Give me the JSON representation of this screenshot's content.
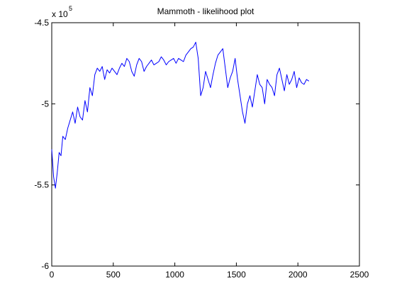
{
  "chart_data": {
    "type": "line",
    "title": "Mammoth - likelihood plot",
    "xlabel": "",
    "ylabel": "",
    "xlim": [
      0,
      2500
    ],
    "ylim": [
      -6,
      -4.5
    ],
    "x_ticks": [
      0,
      500,
      1000,
      1500,
      2000,
      2500
    ],
    "y_ticks": [
      -6,
      -5.5,
      -5,
      -4.5
    ],
    "x_tick_labels": [
      "0",
      "500",
      "1000",
      "1500",
      "2000",
      "2500"
    ],
    "y_tick_labels": [
      "-6",
      "-5.5",
      "-5",
      "-4.5"
    ],
    "y_multiplier": {
      "base": "x 10",
      "exponent": "5"
    },
    "grid": false,
    "legend": "none",
    "series": [
      {
        "color": "#0000ff",
        "x": [
          0,
          15,
          30,
          45,
          60,
          75,
          90,
          110,
          130,
          150,
          170,
          190,
          210,
          230,
          250,
          270,
          290,
          310,
          330,
          350,
          370,
          390,
          410,
          430,
          450,
          470,
          490,
          510,
          530,
          550,
          570,
          590,
          610,
          630,
          650,
          670,
          690,
          710,
          730,
          750,
          770,
          790,
          810,
          830,
          850,
          870,
          890,
          910,
          930,
          950,
          970,
          990,
          1010,
          1030,
          1050,
          1070,
          1090,
          1110,
          1130,
          1150,
          1170,
          1190,
          1210,
          1230,
          1250,
          1270,
          1290,
          1310,
          1330,
          1350,
          1370,
          1390,
          1410,
          1430,
          1450,
          1470,
          1490,
          1510,
          1530,
          1550,
          1570,
          1590,
          1610,
          1630,
          1650,
          1670,
          1690,
          1710,
          1730,
          1750,
          1770,
          1790,
          1810,
          1830,
          1850,
          1870,
          1890,
          1910,
          1930,
          1950,
          1970,
          1990,
          2010,
          2030,
          2050,
          2070,
          2090
        ],
        "y": [
          -5.28,
          -5.45,
          -5.52,
          -5.42,
          -5.3,
          -5.32,
          -5.2,
          -5.22,
          -5.15,
          -5.1,
          -5.05,
          -5.12,
          -5.02,
          -5.08,
          -5.1,
          -4.98,
          -5.05,
          -4.9,
          -4.95,
          -4.82,
          -4.78,
          -4.8,
          -4.77,
          -4.85,
          -4.79,
          -4.81,
          -4.78,
          -4.8,
          -4.82,
          -4.78,
          -4.75,
          -4.77,
          -4.72,
          -4.74,
          -4.8,
          -4.83,
          -4.76,
          -4.72,
          -4.74,
          -4.8,
          -4.77,
          -4.75,
          -4.73,
          -4.76,
          -4.75,
          -4.74,
          -4.71,
          -4.73,
          -4.76,
          -4.74,
          -4.73,
          -4.72,
          -4.75,
          -4.72,
          -4.73,
          -4.74,
          -4.7,
          -4.68,
          -4.66,
          -4.65,
          -4.62,
          -4.72,
          -4.95,
          -4.9,
          -4.8,
          -4.85,
          -4.9,
          -4.82,
          -4.75,
          -4.7,
          -4.68,
          -4.66,
          -4.78,
          -4.9,
          -4.84,
          -4.8,
          -4.72,
          -4.85,
          -4.95,
          -5.05,
          -5.12,
          -5.0,
          -4.95,
          -5.02,
          -4.92,
          -4.82,
          -4.88,
          -4.9,
          -5.0,
          -4.85,
          -4.88,
          -4.9,
          -4.95,
          -4.82,
          -4.78,
          -4.85,
          -4.92,
          -4.82,
          -4.88,
          -4.85,
          -4.8,
          -4.9,
          -4.84,
          -4.87,
          -4.88,
          -4.85,
          -4.86
        ]
      }
    ]
  }
}
